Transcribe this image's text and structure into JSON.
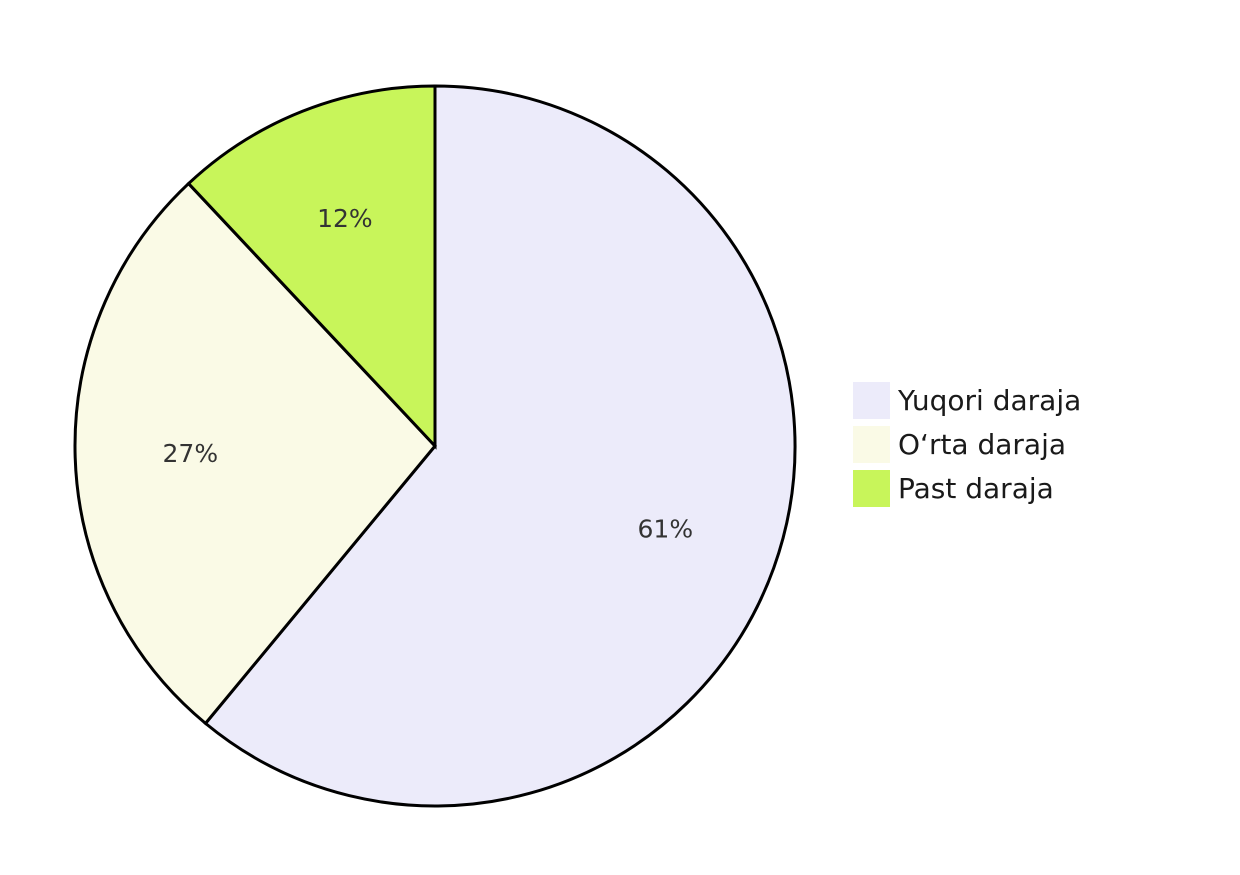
{
  "chart_data": {
    "type": "pie",
    "title": "",
    "start_angle_deg": 0,
    "direction": "clockwise",
    "slices": [
      {
        "label": "Yuqori daraja",
        "value": 61,
        "display": "61%",
        "color": "#ecebfa"
      },
      {
        "label": "O‘rta daraja",
        "value": 27,
        "display": "27%",
        "color": "#fafae6"
      },
      {
        "label": "Past daraja",
        "value": 12,
        "display": "12%",
        "color": "#c8f55a"
      }
    ],
    "legend": {
      "position": "right"
    }
  }
}
